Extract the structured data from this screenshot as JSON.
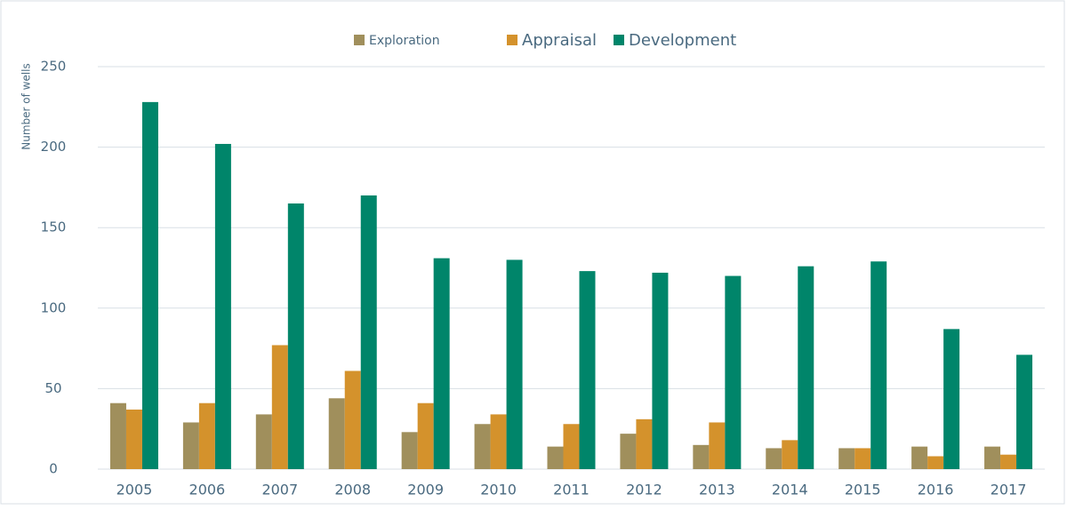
{
  "chart_data": {
    "type": "bar",
    "y_label": "Number of wells",
    "categories": [
      "2005",
      "2006",
      "2007",
      "2008",
      "2009",
      "2010",
      "2011",
      "2012",
      "2013",
      "2014",
      "2015",
      "2016",
      "2017"
    ],
    "series": [
      {
        "name": "Exploration",
        "color": "#a08f5c",
        "values": [
          41,
          29,
          34,
          44,
          23,
          28,
          14,
          22,
          15,
          13,
          13,
          14,
          14
        ]
      },
      {
        "name": "Appraisal",
        "color": "#d4922c",
        "values": [
          37,
          41,
          77,
          61,
          41,
          34,
          28,
          31,
          29,
          18,
          13,
          8,
          9
        ]
      },
      {
        "name": "Development",
        "color": "#00856a",
        "values": [
          228,
          202,
          165,
          170,
          131,
          130,
          123,
          122,
          120,
          126,
          129,
          87,
          71
        ]
      }
    ],
    "ylim": [
      0,
      250
    ],
    "yticks": [
      0,
      50,
      100,
      150,
      200,
      250
    ],
    "grid": true,
    "legend": "top"
  }
}
